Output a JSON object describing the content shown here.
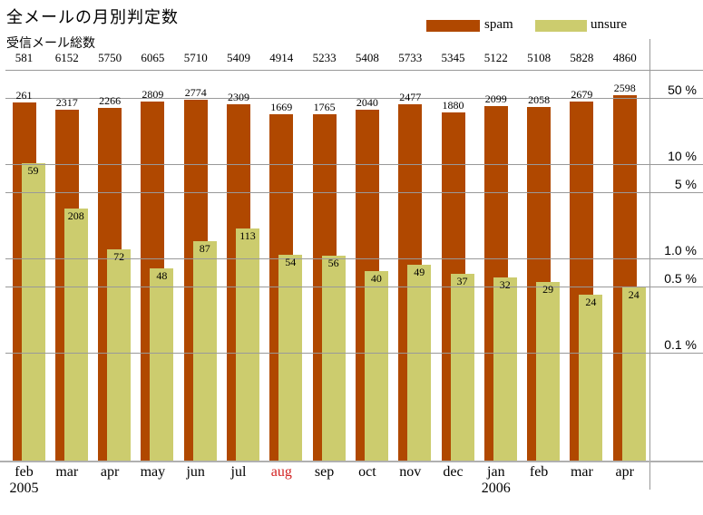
{
  "page": {
    "title": "全メールの月別判定数",
    "subtitle": "受信メール総数"
  },
  "legend": {
    "items": [
      {
        "label": "spam",
        "color": "#b04800"
      },
      {
        "label": "unsure",
        "color": "#cccc6e"
      }
    ]
  },
  "colors": {
    "spam": "#b04800",
    "unsure": "#cccc6e",
    "grid": "#999999",
    "axis_line": "#b0b0b0",
    "highlight_month": "#d22222"
  },
  "chart_data": {
    "type": "bar",
    "scale": "logarithmic-percentage",
    "title": "全メールの月別判定数",
    "totals_row_label": "受信メール総数",
    "categories": [
      "feb",
      "mar",
      "apr",
      "may",
      "jun",
      "jul",
      "aug",
      "sep",
      "oct",
      "nov",
      "dec",
      "jan",
      "feb",
      "mar",
      "apr"
    ],
    "year_markers": [
      {
        "index": 0,
        "label": "2005"
      },
      {
        "index": 11,
        "label": "2006"
      }
    ],
    "highlight_index": 6,
    "series": [
      {
        "name": "total",
        "values": [
          581,
          6152,
          5750,
          6065,
          5710,
          5409,
          4914,
          5233,
          5408,
          5733,
          5345,
          5122,
          5108,
          5828,
          4860
        ]
      },
      {
        "name": "spam",
        "values": [
          261,
          2317,
          2266,
          2809,
          2774,
          2309,
          1669,
          1765,
          2040,
          2477,
          1880,
          2099,
          2058,
          2679,
          2598
        ]
      },
      {
        "name": "unsure",
        "values": [
          59,
          208,
          72,
          48,
          87,
          113,
          54,
          56,
          40,
          49,
          37,
          32,
          29,
          24,
          24
        ]
      }
    ],
    "y_ticks": [
      {
        "label": "50 %",
        "value": 50
      },
      {
        "label": "10 %",
        "value": 10
      },
      {
        "label": "5 %",
        "value": 5
      },
      {
        "label": "1.0 %",
        "value": 1.0
      },
      {
        "label": "0.5 %",
        "value": 0.5
      },
      {
        "label": "0.1 %",
        "value": 0.1
      }
    ],
    "legend_position": "top-right",
    "grid": true
  }
}
